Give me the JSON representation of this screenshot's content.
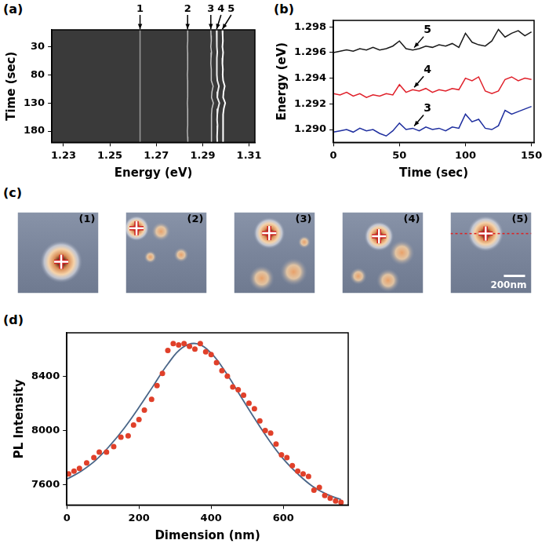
{
  "chart_data": [
    {
      "panel": "(a)",
      "type": "line",
      "xlabel": "Energy (eV)",
      "ylabel": "Time (sec)",
      "xlim": [
        1.225,
        1.3125
      ],
      "xticks": [
        1.23,
        1.25,
        1.27,
        1.29,
        1.31
      ],
      "ylim": [
        200,
        0
      ],
      "yticks": [
        30,
        80,
        130,
        180
      ],
      "grid": false,
      "y": [
        0,
        10,
        20,
        30,
        40,
        50,
        60,
        70,
        80,
        90,
        100,
        110,
        120,
        130,
        140,
        150,
        160,
        170,
        180,
        190,
        200
      ],
      "series": [
        {
          "name": "1",
          "color": "#9a9a9a",
          "values": [
            1.263,
            1.2631,
            1.263,
            1.2629,
            1.263,
            1.2631,
            1.263,
            1.263,
            1.2629,
            1.263,
            1.2631,
            1.263,
            1.263,
            1.2629,
            1.263,
            1.2631,
            1.263,
            1.263,
            1.2629,
            1.263,
            1.2631
          ]
        },
        {
          "name": "2",
          "color": "#b5b5b5",
          "values": [
            1.2835,
            1.2836,
            1.2835,
            1.2834,
            1.2835,
            1.2836,
            1.2835,
            1.2835,
            1.2834,
            1.2835,
            1.2836,
            1.2835,
            1.2835,
            1.2834,
            1.2835,
            1.2836,
            1.2835,
            1.2835,
            1.2834,
            1.2835,
            1.2836
          ]
        },
        {
          "name": "3",
          "color": "#c8c8c8",
          "values": [
            1.2935,
            1.2936,
            1.2937,
            1.2935,
            1.2938,
            1.2936,
            1.2935,
            1.2937,
            1.2936,
            1.2938,
            1.2945,
            1.294,
            1.2938,
            1.2946,
            1.294,
            1.2938,
            1.2937,
            1.2939,
            1.2938,
            1.2937,
            1.2938
          ]
        },
        {
          "name": "4",
          "color": "#f0f0f0",
          "values": [
            1.296,
            1.2961,
            1.2962,
            1.296,
            1.2963,
            1.2961,
            1.296,
            1.2962,
            1.2961,
            1.2963,
            1.297,
            1.2965,
            1.2963,
            1.2972,
            1.2966,
            1.2963,
            1.2962,
            1.2964,
            1.2963,
            1.2962,
            1.2963
          ]
        },
        {
          "name": "5",
          "color": "#ffffff",
          "values": [
            1.2985,
            1.2986,
            1.2987,
            1.2985,
            1.2988,
            1.2986,
            1.2985,
            1.2987,
            1.2986,
            1.2988,
            1.2995,
            1.299,
            1.2988,
            1.2997,
            1.2991,
            1.2988,
            1.2987,
            1.2989,
            1.2988,
            1.2987,
            1.2988
          ]
        }
      ]
    },
    {
      "panel": "(b)",
      "type": "line",
      "xlabel": "Time (sec)",
      "ylabel": "Energy (eV)",
      "xlim": [
        0,
        152
      ],
      "xticks": [
        0,
        50,
        100,
        150
      ],
      "ylim": [
        1.289,
        1.2985
      ],
      "yticks": [
        {
          "value": 1.29,
          "label": "1.290"
        },
        {
          "value": 1.292,
          "label": "1.292"
        },
        {
          "value": 1.294,
          "label": "1.294"
        },
        {
          "value": 1.296,
          "label": "1.296"
        },
        {
          "value": 1.298,
          "label": "1.298"
        }
      ],
      "grid": false,
      "x": [
        0,
        5,
        10,
        15,
        20,
        25,
        30,
        35,
        40,
        45,
        50,
        55,
        60,
        65,
        70,
        75,
        80,
        85,
        90,
        95,
        100,
        105,
        110,
        115,
        120,
        125,
        130,
        135,
        140,
        145,
        150
      ],
      "series": [
        {
          "name": "5",
          "color": "#1a1a1a",
          "values": [
            1.296,
            1.2961,
            1.2962,
            1.2961,
            1.2963,
            1.2962,
            1.2964,
            1.2962,
            1.2963,
            1.2965,
            1.2969,
            1.2963,
            1.2962,
            1.2963,
            1.2965,
            1.2964,
            1.2966,
            1.2965,
            1.2967,
            1.2964,
            1.2975,
            1.2968,
            1.2966,
            1.2965,
            1.2969,
            1.2978,
            1.2972,
            1.2975,
            1.2977,
            1.2973,
            1.2976
          ]
        },
        {
          "name": "4",
          "color": "#e0202a",
          "values": [
            1.2928,
            1.2927,
            1.2929,
            1.2926,
            1.2928,
            1.2925,
            1.2927,
            1.2926,
            1.2928,
            1.2927,
            1.2935,
            1.2929,
            1.2931,
            1.293,
            1.2932,
            1.2929,
            1.2931,
            1.293,
            1.2932,
            1.2931,
            1.294,
            1.2938,
            1.2941,
            1.293,
            1.2928,
            1.293,
            1.2939,
            1.2941,
            1.2938,
            1.294,
            1.2939
          ]
        },
        {
          "name": "3",
          "color": "#1f2f9f",
          "values": [
            1.2898,
            1.2899,
            1.29,
            1.2898,
            1.2901,
            1.2899,
            1.29,
            1.2897,
            1.2895,
            1.2899,
            1.2905,
            1.29,
            1.2901,
            1.2899,
            1.2902,
            1.29,
            1.2901,
            1.2899,
            1.2902,
            1.2901,
            1.2912,
            1.2906,
            1.2908,
            1.2901,
            1.29,
            1.2903,
            1.2915,
            1.2912,
            1.2914,
            1.2916,
            1.2918
          ]
        }
      ]
    },
    {
      "panel": "(c)",
      "type": "map",
      "xlim": [
        0,
        760
      ],
      "ylim": [
        760,
        0
      ],
      "tick_labels": false,
      "maps": [
        {
          "title": "(1)",
          "spot": {
            "x": 410,
            "y": 465,
            "r": 200
          },
          "other_spots": []
        },
        {
          "title": "(2)",
          "spot": {
            "x": 100,
            "y": 150,
            "r": 120
          },
          "other_spots": [
            {
              "x": 330,
              "y": 180,
              "r": 90
            },
            {
              "x": 520,
              "y": 400,
              "r": 70
            },
            {
              "x": 230,
              "y": 420,
              "r": 60
            }
          ]
        },
        {
          "title": "(3)",
          "spot": {
            "x": 330,
            "y": 195,
            "r": 150
          },
          "other_spots": [
            {
              "x": 560,
              "y": 560,
              "r": 130
            },
            {
              "x": 260,
              "y": 620,
              "r": 120
            },
            {
              "x": 660,
              "y": 280,
              "r": 60
            }
          ]
        },
        {
          "title": "(4)",
          "spot": {
            "x": 345,
            "y": 225,
            "r": 140
          },
          "other_spots": [
            {
              "x": 560,
              "y": 380,
              "r": 120
            },
            {
              "x": 430,
              "y": 640,
              "r": 110
            },
            {
              "x": 150,
              "y": 600,
              "r": 80
            }
          ]
        },
        {
          "title": "(5)",
          "spot": {
            "x": 330,
            "y": 200,
            "r": 170
          },
          "other_spots": [],
          "profile_y": 200,
          "scale_bar": {
            "length": 200,
            "label": "200nm"
          }
        }
      ]
    },
    {
      "panel": "(d)",
      "type": "scatter",
      "xlabel": "Dimension (nm)",
      "ylabel": "PL Intensity",
      "xlim": [
        0,
        780
      ],
      "xticks": [
        0,
        200,
        400,
        600
      ],
      "ylim": [
        7450,
        8720
      ],
      "yticks": [
        7600,
        8000,
        8400
      ],
      "grid": false,
      "series": [
        {
          "type": "scatter",
          "color": "#e0402a",
          "marker": "circle",
          "x": [
            5,
            20,
            35,
            55,
            75,
            90,
            110,
            130,
            150,
            170,
            185,
            200,
            215,
            235,
            250,
            265,
            280,
            295,
            310,
            325,
            340,
            355,
            370,
            385,
            400,
            415,
            430,
            445,
            460,
            475,
            490,
            505,
            520,
            535,
            550,
            565,
            580,
            595,
            610,
            625,
            640,
            655,
            670,
            685,
            700,
            715,
            730,
            745,
            760
          ],
          "values": [
            7680,
            7700,
            7720,
            7760,
            7800,
            7840,
            7840,
            7880,
            7950,
            7960,
            8040,
            8080,
            8150,
            8230,
            8330,
            8420,
            8590,
            8640,
            8630,
            8640,
            8620,
            8600,
            8640,
            8580,
            8560,
            8500,
            8440,
            8400,
            8320,
            8300,
            8260,
            8200,
            8160,
            8070,
            8000,
            7980,
            7900,
            7820,
            7800,
            7740,
            7700,
            7680,
            7660,
            7560,
            7580,
            7520,
            7500,
            7480,
            7470
          ]
        },
        {
          "type": "line",
          "color": "#4a6688",
          "line_style": "solid",
          "x": [
            0,
            40,
            80,
            120,
            160,
            200,
            240,
            280,
            320,
            360,
            400,
            440,
            480,
            520,
            560,
            600,
            640,
            680,
            720,
            760
          ],
          "values": [
            7640,
            7700,
            7780,
            7890,
            8020,
            8170,
            8330,
            8490,
            8610,
            8640,
            8570,
            8430,
            8260,
            8090,
            7930,
            7790,
            7680,
            7590,
            7530,
            7490
          ]
        }
      ]
    }
  ]
}
